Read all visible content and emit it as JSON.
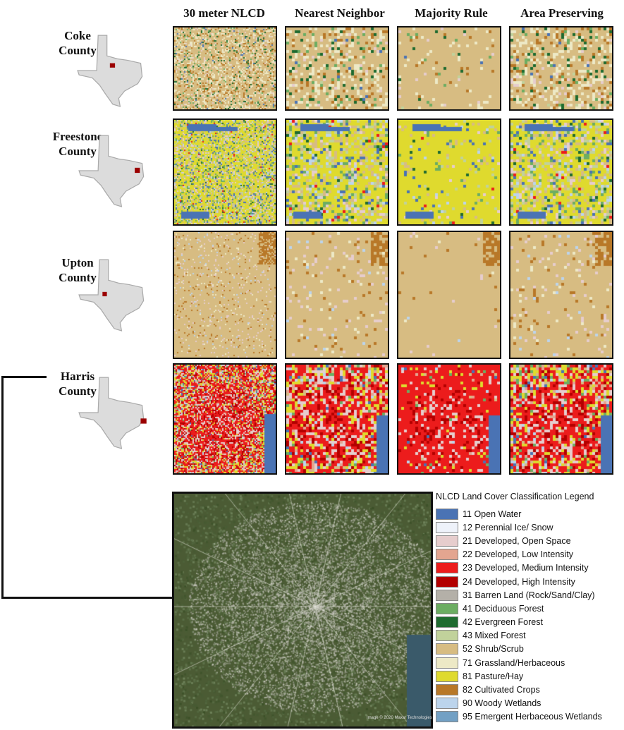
{
  "column_headers": [
    "30 meter NLCD",
    "Nearest Neighbor",
    "Majority Rule",
    "Area Preserving"
  ],
  "counties": [
    {
      "name_line1": "Coke",
      "name_line2": "County"
    },
    {
      "name_line1": "Freestone",
      "name_line2": "County"
    },
    {
      "name_line1": "Upton",
      "name_line2": "County"
    },
    {
      "name_line1": "Harris",
      "name_line2": "County"
    }
  ],
  "legend": {
    "title": "NLCD Land Cover Classification Legend",
    "items": [
      {
        "label": "11 Open Water",
        "color": "#4a73b4"
      },
      {
        "label": "12 Perennial Ice/ Snow",
        "color": "#eef2fa"
      },
      {
        "label": "21 Developed, Open Space",
        "color": "#e6cdcd"
      },
      {
        "label": "22 Developed, Low Intensity",
        "color": "#e3a590"
      },
      {
        "label": "23 Developed, Medium Intensity",
        "color": "#ec1c1c"
      },
      {
        "label": "24 Developed, High Intensity",
        "color": "#b30000"
      },
      {
        "label": "31 Barren Land (Rock/Sand/Clay)",
        "color": "#b4b0a8"
      },
      {
        "label": "41 Deciduous Forest",
        "color": "#6cad62"
      },
      {
        "label": "42 Evergreen Forest",
        "color": "#1f6b30"
      },
      {
        "label": "43 Mixed Forest",
        "color": "#c1d29b"
      },
      {
        "label": "52 Shrub/Scrub",
        "color": "#d7bc82"
      },
      {
        "label": "71 Grassland/Herbaceous",
        "color": "#ede9c6"
      },
      {
        "label": "81 Pasture/Hay",
        "color": "#dfda2e"
      },
      {
        "label": "82 Cultivated Crops",
        "color": "#b87828"
      },
      {
        "label": "90 Woody Wetlands",
        "color": "#bcd4ec"
      },
      {
        "label": "95 Emergent Herbaceous Wetlands",
        "color": "#72a0c4"
      }
    ]
  },
  "satellite_credit": "Image © 2020 Maxar Technologies"
}
